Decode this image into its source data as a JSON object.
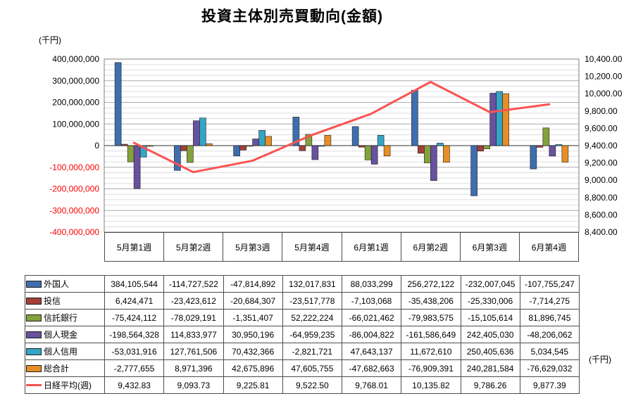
{
  "title": "投資主体別売買動向(金額)",
  "left_axis_unit": "(千円)",
  "right_axis_unit": "(千円)",
  "chart_data": {
    "type": "bar+line",
    "categories": [
      "5月第1週",
      "5月第2週",
      "5月第3週",
      "5月第4週",
      "6月第1週",
      "6月第2週",
      "6月第3週",
      "6月第4週"
    ],
    "bar_series": [
      {
        "name": "外国人",
        "color": "#3F6EAE",
        "values": [
          384105544,
          -114727522,
          -47814892,
          132017831,
          88033299,
          256272122,
          -232007045,
          -107755247
        ]
      },
      {
        "name": "投信",
        "color": "#A43E39",
        "values": [
          6424471,
          -23423612,
          -20684307,
          -23517778,
          -7103068,
          -35438206,
          -25330006,
          -7714275
        ]
      },
      {
        "name": "信託銀行",
        "color": "#84A23C",
        "values": [
          -75424112,
          -78029191,
          -1351407,
          52222224,
          -66021462,
          -79983575,
          -15105614,
          81896745
        ]
      },
      {
        "name": "個人現金",
        "color": "#68519E",
        "values": [
          -198564328,
          114833977,
          30950196,
          -64959235,
          -86004822,
          -161586649,
          242405030,
          -48206062
        ]
      },
      {
        "name": "個人信用",
        "color": "#35A5C6",
        "values": [
          -53031916,
          127761506,
          70432366,
          -2821721,
          47643137,
          11672610,
          250405636,
          5034545
        ]
      },
      {
        "name": "総合計",
        "color": "#E78F26",
        "values": [
          -2777655,
          8971396,
          42675896,
          47605755,
          -47682663,
          -76909391,
          240281584,
          -76629032
        ]
      }
    ],
    "line_series": {
      "name": "日経平均(週)",
      "color": "#FB5252",
      "values": [
        9432.83,
        9093.73,
        9225.81,
        9522.5,
        9768.01,
        10135.82,
        9786.26,
        9877.39
      ]
    },
    "left_axis": {
      "min": -400000000,
      "max": 400000000,
      "major_step": 100000000,
      "minor_step": 25000000,
      "tick_labels": [
        "400,000,000",
        "300,000,000",
        "200,000,000",
        "100,000,000",
        "0",
        "-100,000,000",
        "-200,000,000",
        "-300,000,000",
        "-400,000,000"
      ],
      "negative_label_color": "#FF0000"
    },
    "right_axis": {
      "min": 8400,
      "max": 10400,
      "major_step": 200,
      "tick_labels": [
        "10,400.00",
        "10,200.00",
        "10,000.00",
        "9,800.00",
        "9,600.00",
        "9,400.00",
        "9,200.00",
        "9,000.00",
        "8,800.00",
        "8,600.00",
        "8,400.00"
      ]
    },
    "grid": "on",
    "legend_position": "table-left"
  },
  "table": {
    "rows": [
      {
        "label": "外国人",
        "marker": "bar",
        "color": "#3F6EAE",
        "cells": [
          "384,105,544",
          "-114,727,522",
          "-47,814,892",
          "132,017,831",
          "88,033,299",
          "256,272,122",
          "-232,007,045",
          "-107,755,247"
        ]
      },
      {
        "label": "投信",
        "marker": "bar",
        "color": "#A43E39",
        "cells": [
          "6,424,471",
          "-23,423,612",
          "-20,684,307",
          "-23,517,778",
          "-7,103,068",
          "-35,438,206",
          "-25,330,006",
          "-7,714,275"
        ]
      },
      {
        "label": "信託銀行",
        "marker": "bar",
        "color": "#84A23C",
        "cells": [
          "-75,424,112",
          "-78,029,191",
          "-1,351,407",
          "52,222,224",
          "-66,021,462",
          "-79,983,575",
          "-15,105,614",
          "81,896,745"
        ]
      },
      {
        "label": "個人現金",
        "marker": "bar",
        "color": "#68519E",
        "cells": [
          "-198,564,328",
          "114,833,977",
          "30,950,196",
          "-64,959,235",
          "-86,004,822",
          "-161,586,649",
          "242,405,030",
          "-48,206,062"
        ]
      },
      {
        "label": "個人信用",
        "marker": "bar",
        "color": "#35A5C6",
        "cells": [
          "-53,031,916",
          "127,761,506",
          "70,432,366",
          "-2,821,721",
          "47,643,137",
          "11,672,610",
          "250,405,636",
          "5,034,545"
        ]
      },
      {
        "label": "総合計",
        "marker": "bar",
        "color": "#E78F26",
        "cells": [
          "-2,777,655",
          "8,971,396",
          "42,675,896",
          "47,605,755",
          "-47,682,663",
          "-76,909,391",
          "240,281,584",
          "-76,629,032"
        ]
      },
      {
        "label": "日経平均(週)",
        "marker": "line",
        "color": "#FB5252",
        "cells": [
          "9,432.83",
          "9,093.73",
          "9,225.81",
          "9,522.50",
          "9,768.01",
          "10,135.82",
          "9,786.26",
          "9,877.39"
        ]
      }
    ]
  }
}
